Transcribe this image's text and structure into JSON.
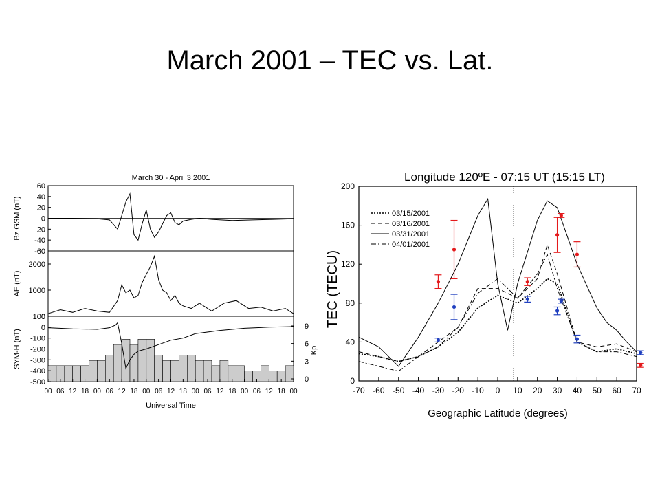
{
  "slide": {
    "title": "March 2001 – TEC vs. Lat."
  },
  "chart_data": [
    {
      "type": "line",
      "title": "March 30 - April 3 2001",
      "xlabel": "Universal Time",
      "x_tick_labels": [
        "00",
        "06",
        "12",
        "18",
        "00",
        "06",
        "12",
        "18",
        "00",
        "06",
        "12",
        "18",
        "00",
        "06",
        "12",
        "18",
        "00",
        "06",
        "12",
        "18",
        "00"
      ],
      "panels": [
        {
          "id": "bz",
          "ylabel": "Bz GSM (nT)",
          "ylim": [
            -60,
            60
          ],
          "yticks": [
            "60",
            "40",
            "20",
            "0",
            "-20",
            "-40",
            "-60"
          ],
          "series": [
            {
              "x": [
                0,
                12,
                24,
                30,
                34,
                38,
                40,
                42,
                44,
                46,
                48,
                50,
                52,
                54,
                56,
                58,
                60,
                62,
                64,
                66,
                70,
                74,
                80,
                90,
                100,
                110,
                120
              ],
              "y": [
                0,
                0,
                -1,
                -3,
                -20,
                30,
                45,
                -30,
                -40,
                -10,
                15,
                -20,
                -35,
                -25,
                -10,
                5,
                10,
                -8,
                -12,
                -5,
                -2,
                0,
                -2,
                -4,
                -3,
                -2,
                -1
              ]
            }
          ]
        },
        {
          "id": "ae",
          "ylabel": "AE (nT)",
          "ylim": [
            0,
            2500
          ],
          "yticks": [
            "2000",
            "1000",
            "0"
          ],
          "series": [
            {
              "x": [
                0,
                6,
                12,
                18,
                24,
                30,
                34,
                36,
                38,
                40,
                42,
                44,
                46,
                48,
                50,
                52,
                54,
                56,
                58,
                60,
                62,
                64,
                66,
                70,
                74,
                80,
                86,
                92,
                98,
                104,
                110,
                116,
                120
              ],
              "y": [
                100,
                250,
                150,
                300,
                200,
                150,
                600,
                1200,
                900,
                1000,
                700,
                800,
                1300,
                1600,
                1900,
                2300,
                1400,
                1000,
                900,
                600,
                800,
                500,
                400,
                300,
                500,
                200,
                500,
                600,
                300,
                350,
                200,
                300,
                100
              ]
            }
          ]
        },
        {
          "id": "symh",
          "ylabel": "SYM-H (nT)",
          "ylim": [
            -500,
            100
          ],
          "yticks": [
            "100",
            "0",
            "-100",
            "-200",
            "-300",
            "-400",
            "-500"
          ],
          "right_label": "Kp",
          "right_ticks": [
            "9",
            "6",
            "3",
            "0"
          ],
          "kp_bars": [
            3,
            3,
            3,
            3,
            3,
            4,
            4,
            5,
            7,
            8,
            7,
            8,
            8,
            5,
            4,
            4,
            5,
            5,
            4,
            4,
            3,
            4,
            3,
            3,
            2,
            2,
            3,
            2,
            2,
            3
          ],
          "series": [
            {
              "x": [
                0,
                12,
                24,
                30,
                33,
                34,
                36,
                38,
                40,
                42,
                44,
                48,
                54,
                60,
                66,
                72,
                84,
                96,
                108,
                120
              ],
              "y": [
                -5,
                -15,
                -20,
                -5,
                20,
                40,
                -150,
                -380,
                -300,
                -250,
                -220,
                -200,
                -160,
                -120,
                -100,
                -60,
                -30,
                -10,
                0,
                5
              ]
            }
          ]
        }
      ]
    },
    {
      "type": "line",
      "title": "Longitude 120ºE - 07:15 UT (15:15 LT)",
      "xlabel": "Geographic Latitude (degrees)",
      "ylabel": "TEC (TECU)",
      "xlim": [
        -70,
        70
      ],
      "ylim": [
        0,
        200
      ],
      "x_tick_labels": [
        "-70",
        "-60",
        "-50",
        "-40",
        "-30",
        "-20",
        "-10",
        "0",
        "10",
        "20",
        "30",
        "40",
        "50",
        "60",
        "70"
      ],
      "y_tick_labels": [
        "200",
        "160",
        "120",
        "80",
        "40",
        "0"
      ],
      "vline_x": 8,
      "legend": "top-left",
      "series": [
        {
          "name": "03/15/2001",
          "dash": "dotted",
          "x": [
            -70,
            -60,
            -50,
            -40,
            -30,
            -20,
            -10,
            0,
            10,
            20,
            25,
            30,
            40,
            50,
            60,
            70
          ],
          "y": [
            28,
            25,
            20,
            25,
            35,
            50,
            75,
            88,
            80,
            95,
            105,
            100,
            40,
            30,
            33,
            28
          ]
        },
        {
          "name": "03/16/2001",
          "dash": "dashed",
          "x": [
            -70,
            -60,
            -50,
            -40,
            -30,
            -20,
            -10,
            0,
            10,
            20,
            25,
            30,
            40,
            50,
            60,
            70
          ],
          "y": [
            30,
            25,
            20,
            25,
            40,
            55,
            95,
            95,
            85,
            105,
            140,
            110,
            40,
            35,
            38,
            30
          ]
        },
        {
          "name": "03/31/2001",
          "dash": "solid",
          "x": [
            -70,
            -60,
            -50,
            -40,
            -30,
            -20,
            -10,
            -5,
            0,
            5,
            10,
            20,
            25,
            30,
            40,
            50,
            55,
            60,
            65,
            70
          ],
          "y": [
            45,
            35,
            15,
            45,
            80,
            120,
            170,
            187,
            100,
            52,
            100,
            165,
            185,
            178,
            120,
            75,
            60,
            52,
            40,
            30
          ]
        },
        {
          "name": "04/01/2001",
          "dash": "dashdot",
          "x": [
            -70,
            -60,
            -50,
            -40,
            -30,
            -20,
            -10,
            0,
            10,
            20,
            25,
            30,
            40,
            50,
            60,
            70
          ],
          "y": [
            20,
            15,
            10,
            25,
            35,
            55,
            90,
            105,
            85,
            110,
            130,
            95,
            40,
            30,
            30,
            25
          ]
        }
      ],
      "error_points": [
        {
          "color": "#e41a1c",
          "x": [
            -30,
            -22,
            15,
            30,
            32,
            40,
            72
          ],
          "y": [
            102,
            135,
            102,
            150,
            170,
            130,
            16
          ],
          "err": [
            7,
            30,
            4,
            18,
            2,
            13,
            2
          ]
        },
        {
          "color": "#1f3fbf",
          "x": [
            -30,
            -22,
            15,
            30,
            32,
            40,
            72
          ],
          "y": [
            42,
            76,
            84,
            72,
            82,
            43,
            29
          ],
          "err": [
            2,
            13,
            3,
            4,
            2,
            4,
            2
          ]
        }
      ]
    }
  ]
}
